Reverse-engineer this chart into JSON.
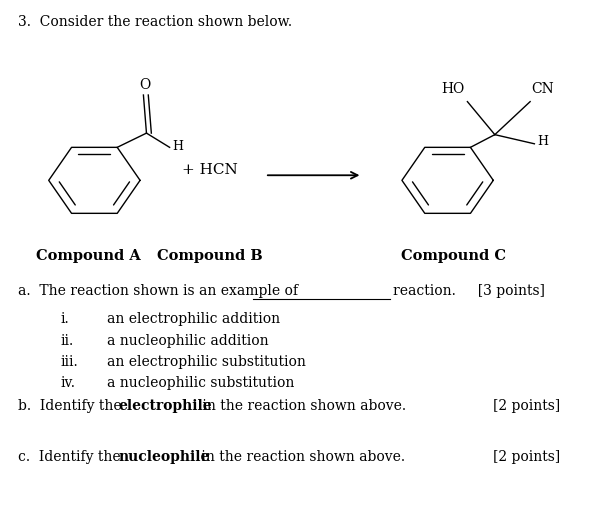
{
  "background_color": "#ffffff",
  "text_color": "#000000",
  "title_text": "3.  Consider the reaction shown below.",
  "compound_a_label": "Compound A",
  "compound_b_label": "Compound B",
  "compound_c_label": "Compound C",
  "plus_hcn": "+ HCN",
  "font_size_main": 10,
  "font_size_label": 10.5,
  "options": [
    [
      "i.",
      "an electrophilic addition"
    ],
    [
      "ii.",
      "a nucleophilic addition"
    ],
    [
      "iii.",
      "an electrophilic substitution"
    ],
    [
      "iv.",
      "a nucleophilic substitution"
    ]
  ]
}
